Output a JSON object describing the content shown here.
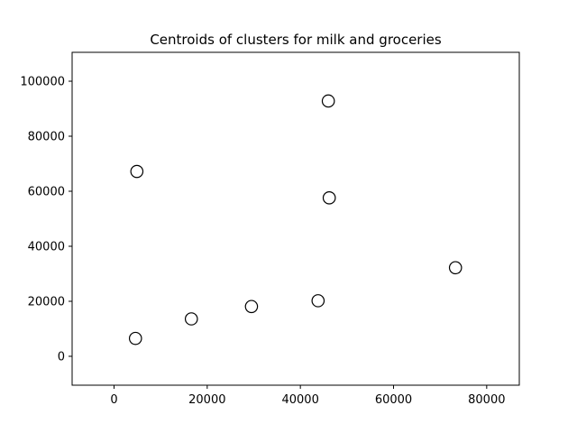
{
  "chart_data": {
    "type": "scatter",
    "title": "Centroids of clusters for milk and groceries",
    "xlabel": "",
    "ylabel": "",
    "xlim": [
      -9000,
      87000
    ],
    "ylim": [
      -10500,
      110500
    ],
    "xticks": [
      0,
      20000,
      40000,
      60000,
      80000
    ],
    "yticks": [
      0,
      20000,
      40000,
      60000,
      80000,
      100000
    ],
    "grid": false,
    "marker": {
      "shape": "circle",
      "fill": "none",
      "edge_color": "#000000"
    },
    "points": [
      {
        "x": 4600,
        "y": 6500
      },
      {
        "x": 16600,
        "y": 13600
      },
      {
        "x": 29500,
        "y": 18100
      },
      {
        "x": 43800,
        "y": 20200
      },
      {
        "x": 73300,
        "y": 32200
      },
      {
        "x": 46200,
        "y": 57600
      },
      {
        "x": 4900,
        "y": 67200
      },
      {
        "x": 46000,
        "y": 92800
      }
    ]
  }
}
